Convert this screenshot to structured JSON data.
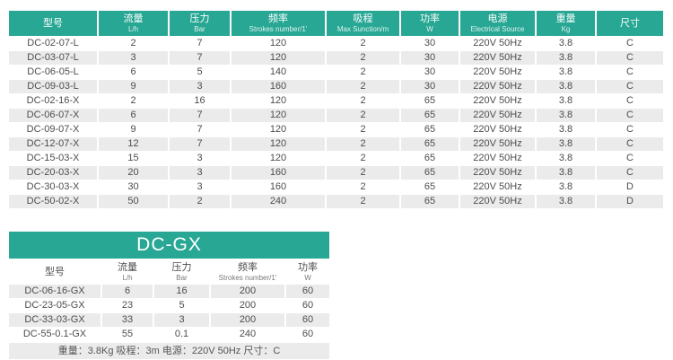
{
  "colors": {
    "teal": "#28a794",
    "stripe_gray": "#ebebeb",
    "text_gray": "#4d4d4d"
  },
  "main_table": {
    "columns": [
      {
        "zh": "型号",
        "en": ""
      },
      {
        "zh": "流量",
        "en": "L/h"
      },
      {
        "zh": "压力",
        "en": "Bar"
      },
      {
        "zh": "频率",
        "en": "Strokes number/1'"
      },
      {
        "zh": "吸程",
        "en": "Max Sunction/m"
      },
      {
        "zh": "功率",
        "en": "W"
      },
      {
        "zh": "电源",
        "en": "Electrical Source"
      },
      {
        "zh": "重量",
        "en": "Kg"
      },
      {
        "zh": "尺寸",
        "en": ""
      }
    ],
    "rows": [
      [
        "DC-02-07-L",
        "2",
        "7",
        "120",
        "2",
        "30",
        "220V 50Hz",
        "3.8",
        "C"
      ],
      [
        "DC-03-07-L",
        "3",
        "7",
        "120",
        "2",
        "30",
        "220V 50Hz",
        "3.8",
        "C"
      ],
      [
        "DC-06-05-L",
        "6",
        "5",
        "140",
        "2",
        "30",
        "220V 50Hz",
        "3.8",
        "C"
      ],
      [
        "DC-09-03-L",
        "9",
        "3",
        "160",
        "2",
        "30",
        "220V 50Hz",
        "3.8",
        "C"
      ],
      [
        "DC-02-16-X",
        "2",
        "16",
        "120",
        "2",
        "65",
        "220V 50Hz",
        "3.8",
        "C"
      ],
      [
        "DC-06-07-X",
        "6",
        "7",
        "120",
        "2",
        "65",
        "220V 50Hz",
        "3.8",
        "C"
      ],
      [
        "DC-09-07-X",
        "9",
        "7",
        "120",
        "2",
        "65",
        "220V 50Hz",
        "3.8",
        "C"
      ],
      [
        "DC-12-07-X",
        "12",
        "7",
        "120",
        "2",
        "65",
        "220V 50Hz",
        "3.8",
        "C"
      ],
      [
        "DC-15-03-X",
        "15",
        "3",
        "120",
        "2",
        "65",
        "220V 50Hz",
        "3.8",
        "C"
      ],
      [
        "DC-20-03-X",
        "20",
        "3",
        "160",
        "2",
        "65",
        "220V 50Hz",
        "3.8",
        "C"
      ],
      [
        "DC-30-03-X",
        "30",
        "3",
        "160",
        "2",
        "65",
        "220V 50Hz",
        "3.8",
        "D"
      ],
      [
        "DC-50-02-X",
        "50",
        "2",
        "240",
        "2",
        "65",
        "220V 50Hz",
        "3.8",
        "D"
      ]
    ]
  },
  "gx_table": {
    "title": "DC-GX",
    "columns": [
      {
        "zh": "型号",
        "en": ""
      },
      {
        "zh": "流量",
        "en": "L/h"
      },
      {
        "zh": "压力",
        "en": "Bar"
      },
      {
        "zh": "频率",
        "en": "Strokes number/1'"
      },
      {
        "zh": "功率",
        "en": "W"
      }
    ],
    "rows": [
      [
        "DC-06-16-GX",
        "6",
        "16",
        "200",
        "60"
      ],
      [
        "DC-23-05-GX",
        "23",
        "5",
        "200",
        "60"
      ],
      [
        "DC-33-03-GX",
        "33",
        "3",
        "200",
        "60"
      ],
      [
        "DC-55-0.1-GX",
        "55",
        "0.1",
        "240",
        "60"
      ]
    ],
    "footnote": "重量：3.8Kg 吸程：3m 电源：220V 50Hz 尺寸：C"
  }
}
